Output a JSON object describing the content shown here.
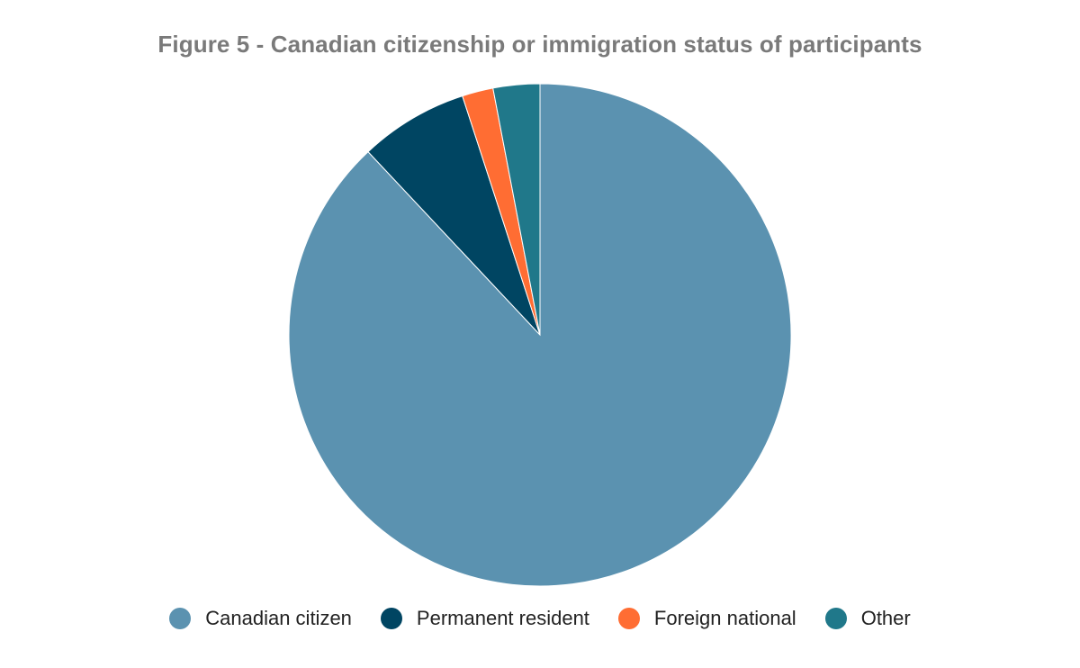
{
  "chart_data": {
    "type": "pie",
    "title": "Figure 5 - Canadian citizenship or immigration status of participants",
    "categories": [
      "Canadian citizen",
      "Permanent resident",
      "Foreign national",
      "Other"
    ],
    "values": [
      88,
      7,
      2,
      3
    ],
    "colors": [
      "#5b92b0",
      "#004562",
      "#ff6d33",
      "#20788a"
    ],
    "legend_position": "bottom",
    "start_angle": "top, clockwise"
  }
}
